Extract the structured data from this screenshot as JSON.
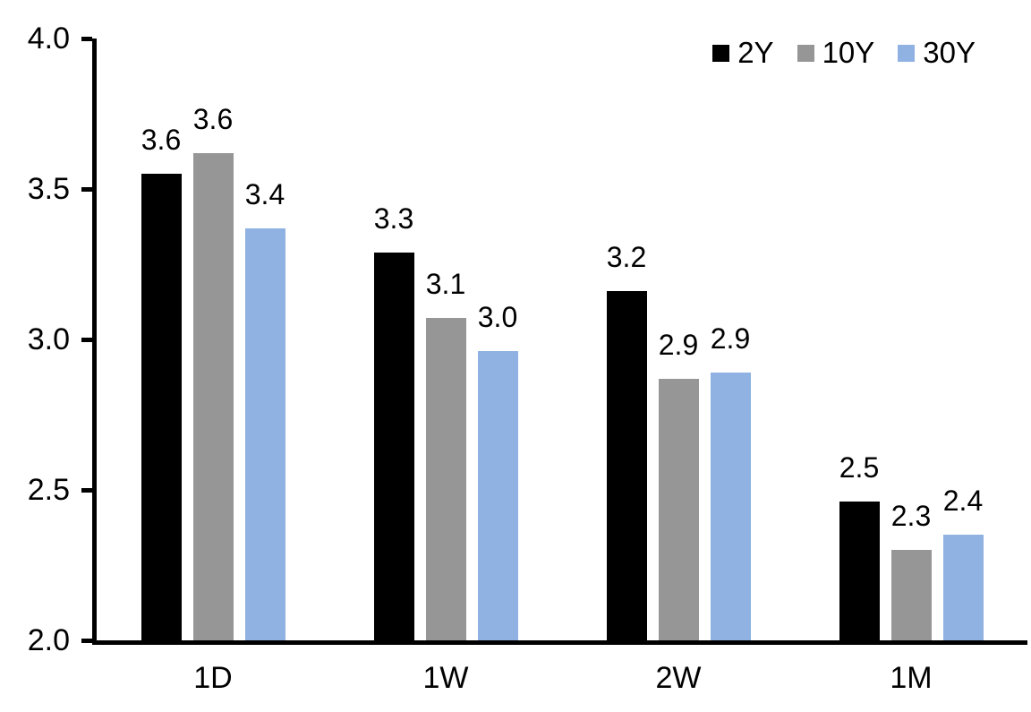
{
  "chart": {
    "background_color": "#FFFFFF",
    "axis_color": "#000000",
    "text_color": "#000000"
  },
  "chart_data": {
    "type": "bar",
    "title": "",
    "xlabel": "",
    "ylabel": "",
    "categories": [
      "1D",
      "1W",
      "2W",
      "1M"
    ],
    "series": [
      {
        "name": "2Y",
        "color": "#000000",
        "values": [
          3.6,
          3.3,
          3.2,
          2.5
        ],
        "labels": [
          "3.6",
          "3.3",
          "3.2",
          "2.5"
        ],
        "precise_values": [
          3.55,
          3.29,
          3.16,
          2.46
        ]
      },
      {
        "name": "10Y",
        "color": "#969696",
        "values": [
          3.6,
          3.1,
          2.9,
          2.3
        ],
        "labels": [
          "3.6",
          "3.1",
          "2.9",
          "2.3"
        ],
        "precise_values": [
          3.62,
          3.07,
          2.87,
          2.3
        ]
      },
      {
        "name": "30Y",
        "color": "#8FB2E2",
        "values": [
          3.4,
          3.0,
          2.9,
          2.4
        ],
        "labels": [
          "3.4",
          "3.0",
          "2.9",
          "2.4"
        ],
        "precise_values": [
          3.37,
          2.96,
          2.89,
          2.35
        ]
      }
    ],
    "ylim": [
      2.0,
      4.0
    ],
    "y_ticks": [
      2.0,
      2.5,
      3.0,
      3.5,
      4.0
    ],
    "y_tick_labels": [
      "2.0",
      "2.5",
      "3.0",
      "3.5",
      "4.0"
    ],
    "grid": false,
    "legend_position": "top-right",
    "data_labels_shown": true
  }
}
